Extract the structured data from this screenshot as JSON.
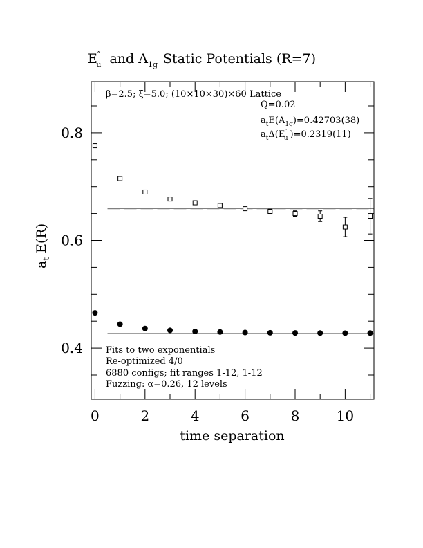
{
  "chart_data": {
    "type": "scatter",
    "title": {
      "main": "E",
      "main_sup": "″",
      "main_sub": "u",
      "mid": "and A",
      "mid_sub": "1g",
      "tail": "Static Potentials (R=7)"
    },
    "xlabel": "time separation",
    "ylabel": {
      "main": "a",
      "sub": "t",
      "tail": "E(R)"
    },
    "xlim": [
      -0.15,
      11.15
    ],
    "ylim": [
      0.305,
      0.895
    ],
    "xticks_major": [
      0,
      2,
      4,
      6,
      8,
      10
    ],
    "xticks_major_labels": [
      "0",
      "2",
      "4",
      "6",
      "8",
      "10"
    ],
    "yticks_major": [
      0.4,
      0.6,
      0.8
    ],
    "yticks_major_labels": [
      "0.4",
      "0.6",
      "0.8"
    ],
    "xticks_minor": [
      1,
      3,
      5,
      7,
      9,
      11
    ],
    "yticks_minor": [
      0.35,
      0.45,
      0.5,
      0.55,
      0.65,
      0.7,
      0.75,
      0.85
    ],
    "series": [
      {
        "marker": "open-square",
        "x": [
          0,
          1,
          2,
          3,
          4,
          5,
          6,
          7,
          8,
          9,
          10,
          11
        ],
        "y": [
          0.776,
          0.715,
          0.69,
          0.677,
          0.67,
          0.665,
          0.659,
          0.654,
          0.65,
          0.645,
          0.625,
          0.645
        ],
        "err": [
          0.001,
          0.002,
          0.002,
          0.002,
          0.002,
          0.002,
          0.003,
          0.004,
          0.005,
          0.01,
          0.018,
          0.033
        ]
      },
      {
        "marker": "filled-circle",
        "x": [
          0,
          1,
          2,
          3,
          4,
          5,
          6,
          7,
          8,
          9,
          10,
          11
        ],
        "y": [
          0.4655,
          0.4445,
          0.4365,
          0.433,
          0.431,
          0.43,
          0.429,
          0.4285,
          0.4282,
          0.428,
          0.4278,
          0.428
        ],
        "err": [
          0.0008,
          0.0008,
          0.0008,
          0.0008,
          0.0008,
          0.0008,
          0.0008,
          0.0008,
          0.0008,
          0.0008,
          0.0008,
          0.0008
        ]
      }
    ],
    "fit_lines": [
      {
        "style": "solid",
        "x": [
          0.5,
          11.15
        ],
        "y": 0.6597
      },
      {
        "style": "dashed",
        "x": [
          0.5,
          11.15
        ],
        "y": 0.6567
      },
      {
        "style": "solid",
        "x": [
          0.5,
          11.15
        ],
        "y": 0.427
      }
    ],
    "annotations": {
      "top_left": "β=2.5; ξ=5.0; (10×10×30)×60 Lattice",
      "q": "Q=0.02",
      "energy_pre": "a",
      "energy_pre_sub": "t",
      "energy_mid": "E(A",
      "energy_mid_sub": "1g",
      "energy_tail": ")=0.42703(38)",
      "gap_pre": "a",
      "gap_pre_sub": "t",
      "gap_mid": "Δ(E",
      "gap_mid_sup": "″",
      "gap_mid_sub": "u",
      "gap_tail": ")=0.2319(11)",
      "bottom_lines": [
        "Fits to two exponentials",
        "Re-optimized 4/0",
        "6880 configs; fit ranges 1-12, 1-12",
        "Fuzzing: α=0.26, 12 levels"
      ]
    }
  }
}
